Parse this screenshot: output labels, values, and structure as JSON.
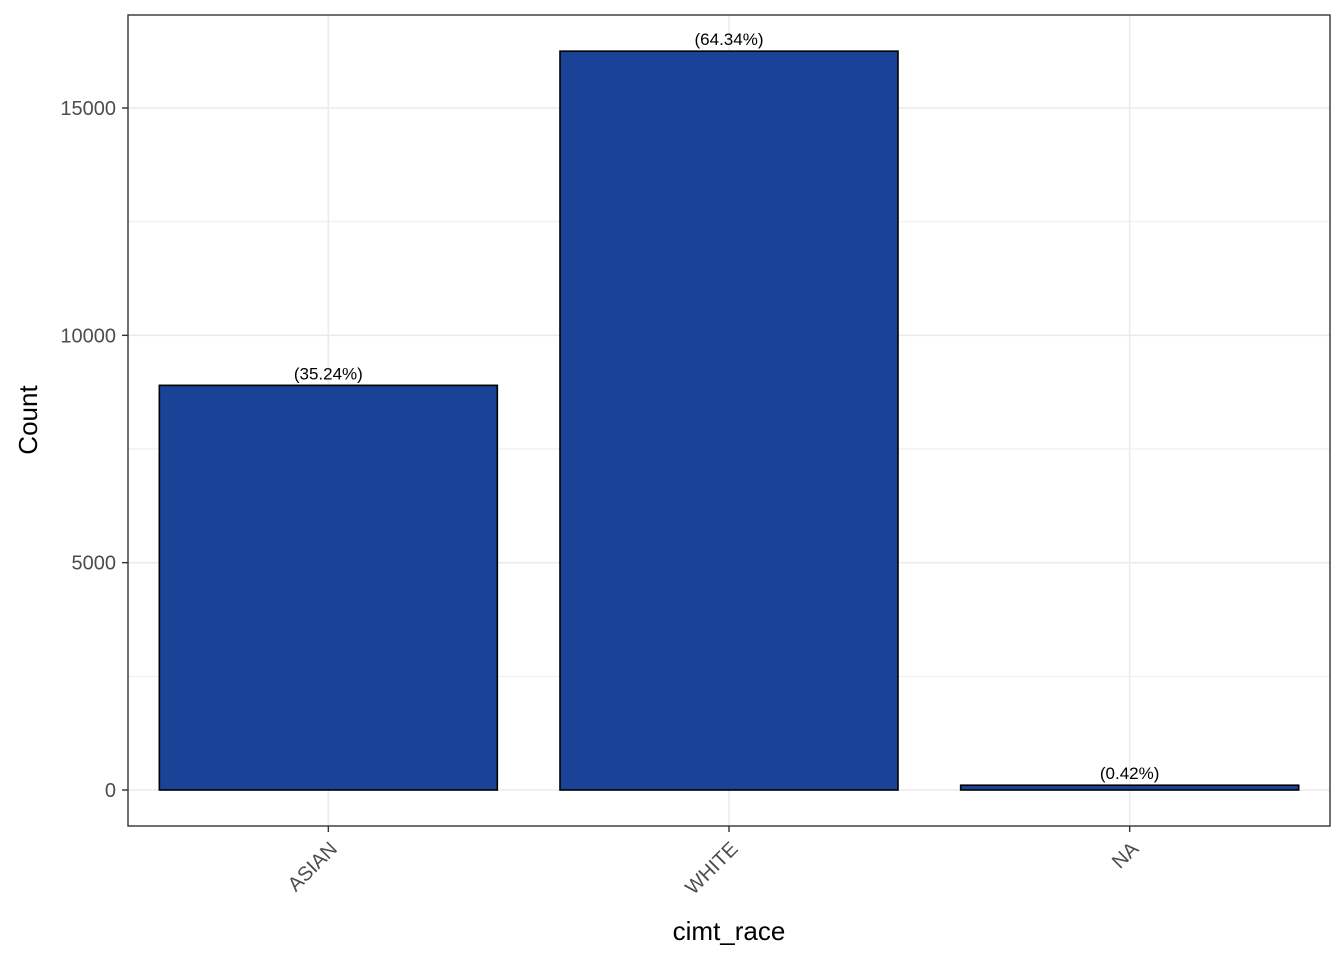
{
  "chart_data": {
    "type": "bar",
    "categories": [
      "ASIAN",
      "WHITE",
      "NA"
    ],
    "values": [
      8900,
      16250,
      105
    ],
    "data_labels": [
      "(35.24%)",
      "(64.34%)",
      "(0.42%)"
    ],
    "title": "",
    "xlabel": "cimt_race",
    "ylabel": "Count",
    "ylim": [
      -800,
      17000
    ],
    "yticks": [
      0,
      5000,
      10000,
      15000
    ],
    "ytick_labels": [
      "0",
      "5000",
      "10000",
      "15000"
    ],
    "grid": true,
    "legend": "none",
    "colors": {
      "bar_fill": "#1a4397",
      "bar_stroke": "#000000",
      "grid": "#ebebeb",
      "panel_border": "#333333"
    }
  }
}
